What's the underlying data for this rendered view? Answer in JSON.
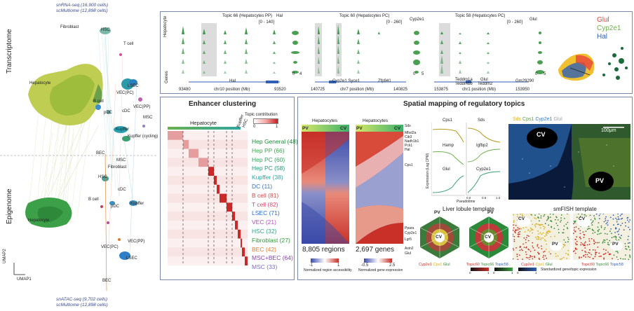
{
  "umap": {
    "top_line1": "snRNA-seq (16,900 cells)",
    "top_line2": "scMultiome (12,898 cells)",
    "bottom_line1": "snATAC-seq (9,702 cells)",
    "bottom_line2": "scMultiome (12,898 cells)",
    "label_transcriptome": "Transcriptome",
    "label_epigenome": "Epigenome",
    "axis_y": "UMAP2",
    "axis_x": "UMAP1",
    "top_labels": [
      "Fibroblast",
      "HSC",
      "T cell",
      "Hepatocyte",
      "LSEC",
      "VEC(PC)",
      "B cell",
      "cDC",
      "VEC(PP)",
      "pDC",
      "MSC",
      "Kupffer",
      "Kupffer (cycling)"
    ],
    "bottom_labels": [
      "BEC",
      "MSC",
      "Fibroblast",
      "HSC",
      "cDC",
      "B cell",
      "pDC",
      "Kupffer",
      "Hepatocyte",
      "VEC(PC)",
      "VEC(PP)",
      "LSEC",
      "BEC"
    ]
  },
  "tracks": {
    "panel1": {
      "title": "Topic 66 (Hepatocytes PP)",
      "gene": "Hal",
      "range": "[0 - 140]",
      "gene_label": "Hal",
      "xstart": "93480",
      "xend": "93520",
      "chr": "chr10 position (Mb)",
      "axis0": "0",
      "axis1": "4"
    },
    "panel2": {
      "title": "Topic 60 (Hepatocytes PC)",
      "gene": "Cyp2e1",
      "range": "[0 - 260]",
      "gene_label": "Cyp2e1  Syce1",
      "gene_label2": "Zfp941",
      "xstart": "140725",
      "xend": "140825",
      "chr": "chr7 position (Mb)",
      "axis0": "0",
      "axis1": "5"
    },
    "panel3": {
      "title": "Topic 58 (Hepatocytes PC)",
      "gene": "Glul",
      "range": "[0 - 260]",
      "gene_label": "Teddm1a",
      "gene_label2": "Teddm1b",
      "gene_label3": "Glul",
      "gene_label4": "Teddm2",
      "gene_label5": "Gm29290",
      "xstart": "153875",
      "xend": "153950",
      "chr": "chr1 position (Mb)",
      "axis0": "0",
      "axis1": "5"
    },
    "row_label": "Hepatocyte",
    "genes_label": "Genes"
  },
  "legend_umap": {
    "g1": "Glul",
    "g2": "Cyp2e1",
    "g3": "Hal",
    "c1": "#e8443a",
    "c2": "#6ab04c",
    "c3": "#2f5fb5"
  },
  "enhancer": {
    "title": "Enhancer clustering",
    "colorbar_label": "Topic contribution",
    "cb_min": "0",
    "cb_max": "1",
    "header_hep": "Hepatocyte",
    "header_kupffer": "Kupffer",
    "header_hsc": "HSC",
    "clusters": [
      {
        "label": "Hep General (48)",
        "color": "#1f8a3b"
      },
      {
        "label": "Hep PP (66)",
        "color": "#3aa64a"
      },
      {
        "label": "Hep PC (60)",
        "color": "#2fa55a"
      },
      {
        "label": "Hep PC (58)",
        "color": "#1d9a78"
      },
      {
        "label": "Kupffer (38)",
        "color": "#2fa5a0"
      },
      {
        "label": "DC (11)",
        "color": "#3b6fb0"
      },
      {
        "label": "B cell (81)",
        "color": "#c94a4a"
      },
      {
        "label": "T cell (82)",
        "color": "#d8486d"
      },
      {
        "label": "LSEC (71)",
        "color": "#2a6fd1"
      },
      {
        "label": "VEC (21)",
        "color": "#b54cc0"
      },
      {
        "label": "HSC (32)",
        "color": "#2fa58a"
      },
      {
        "label": "Fibroblast (27)",
        "color": "#2f9a3a"
      },
      {
        "label": "BEC (42)",
        "color": "#e07a2a"
      },
      {
        "label": "MSC+BEC (64)",
        "color": "#8a3fb0"
      },
      {
        "label": "MSC (33)",
        "color": "#7b6fc0"
      }
    ]
  },
  "spatial": {
    "title": "Spatial mapping of regulatory topics",
    "hm1_title": "Hepatocytes",
    "hm2_title": "Hepatocytes",
    "pv": "PV",
    "cv": "CV",
    "hm1_count": "8,805 regions",
    "hm2_count": "2,697 genes",
    "hm1_legend": "Normalized region accessibility",
    "hm2_legend": "Normalized gene expression",
    "hm1_ticks": [
      "-1",
      "1"
    ],
    "hm2_ticks": [
      "-0.5",
      "2.5"
    ],
    "gene_list_top": [
      "Sds",
      "Mfsd2a",
      "Cib3",
      "Nadh1b1",
      "Pck1",
      "Hal"
    ],
    "gene_list_mid": [
      "Cps1"
    ],
    "gene_list_bot": [
      "Ppara",
      "Cyp2e1",
      "Lgr5",
      "Axin2",
      "Glul"
    ],
    "pseudotime_genes": [
      "Cps1",
      "Sds",
      "Hamp",
      "Igfbp2",
      "Glul",
      "Cyp2e1"
    ],
    "pseudotime_ylabel": "Expression (Log CPM)",
    "pseudotime_xlabel": "Pseudotime",
    "pseudotime_ticks": [
      "0.0",
      "0.5",
      "1.0"
    ],
    "fish_title_parts": [
      "Sds",
      "Cps1",
      "Cyp2e1",
      "Glul"
    ],
    "fish_cv": "CV",
    "fish_pv": "PV",
    "scalebar": "100μm",
    "lobule_title": "Liver lobule template",
    "smfish_title": "smFISH template",
    "lob1_legend": [
      "Cyp2e1",
      "Cps1",
      "Glul"
    ],
    "lob2_legend": [
      "Topic60",
      "Topic66",
      "Topic58"
    ],
    "fish1_legend": [
      "Cyp2e1",
      "Cps1",
      "Glul"
    ],
    "fish2_legend": [
      "Topic60",
      "Topic66",
      "Topic58"
    ],
    "std_label": "Standardized gene/topic expression",
    "std_ticks": [
      "0",
      "1",
      "0",
      "1",
      "0",
      "1"
    ]
  }
}
